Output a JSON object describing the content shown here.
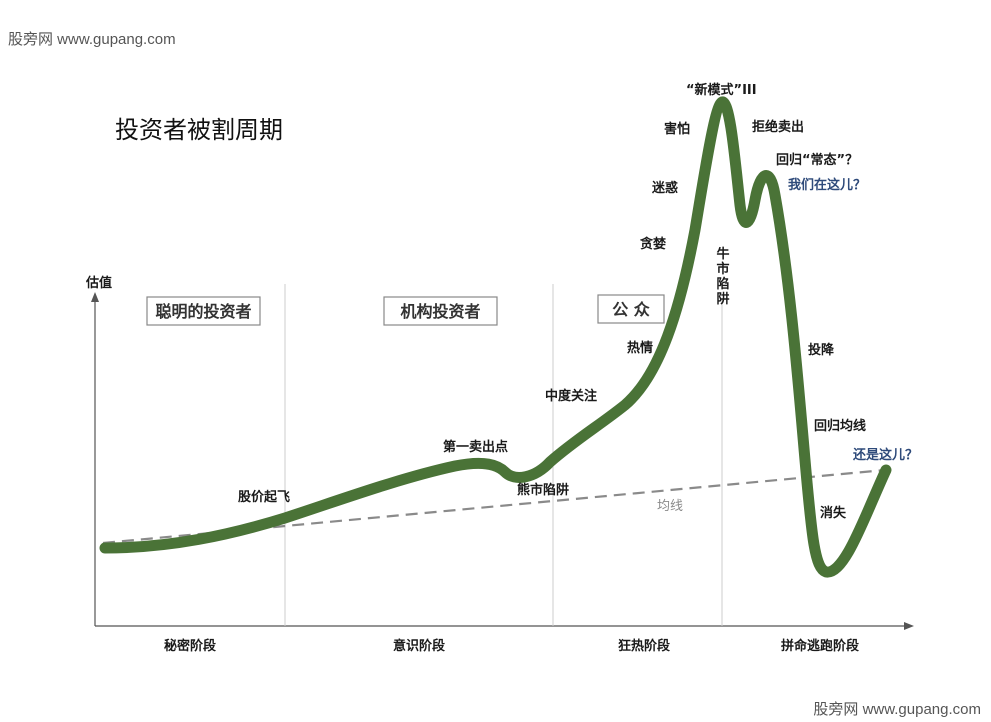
{
  "watermark_top": "股旁网 www.gupang.com",
  "watermark_bottom": "股旁网 www.gupang.com",
  "title": "投资者被割周期",
  "y_axis_label": "估值",
  "investor_boxes": {
    "smart": "聪明的投资者",
    "institutional": "机构投资者",
    "public": "公 众"
  },
  "phases": {
    "stealth": "秘密阶段",
    "awareness": "意识阶段",
    "mania": "狂热阶段",
    "blowoff": "拼命逃跑阶段"
  },
  "annotations": {
    "takeoff": "股价起飞",
    "first_sell": "第一卖出点",
    "bear_trap": "熊市陷阱",
    "media_attention": "中度关注",
    "enthusiasm": "热情",
    "greed": "贪婪",
    "delusion": "迷惑",
    "fear": "害怕",
    "new_paradigm": "“新模式”III",
    "denial": "拒绝卖出",
    "return_normal": "回归“常态”？",
    "we_are_here": "我们在这儿？",
    "bull_trap": "牛市陷阱",
    "capitulation": "投降",
    "return_mean": "回归均线",
    "still_here": "还是这儿？",
    "despair": "消失",
    "mean_line": "均线"
  },
  "colors": {
    "curve": "#4a7337",
    "mean_line": "#8a8a8a",
    "axis": "#555555",
    "divider": "#cccccc",
    "blue_text": "#2e4a7a",
    "box_border": "#888888"
  }
}
